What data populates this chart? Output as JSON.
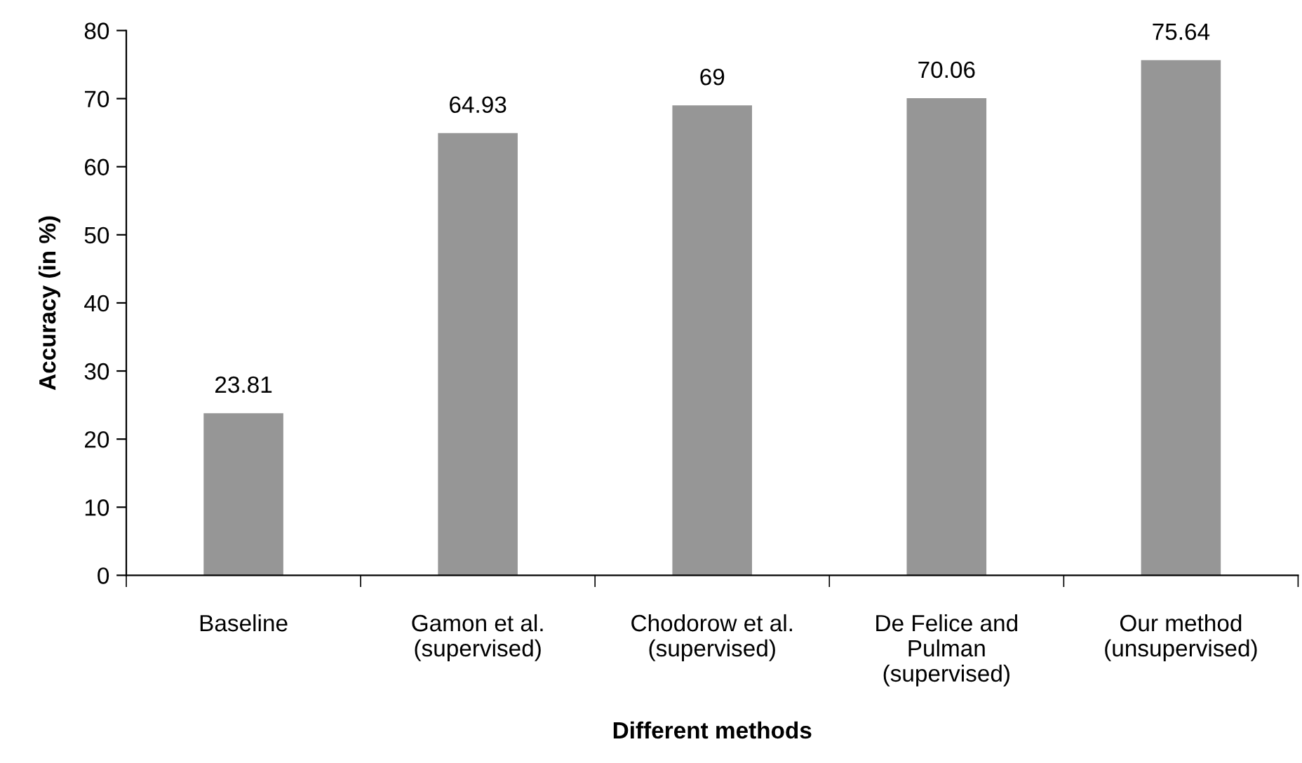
{
  "chart_data": {
    "type": "bar",
    "categories": [
      "Baseline",
      "Gamon et al.\n(supervised)",
      "Chodorow et al.\n(supervised)",
      "De Felice and\nPulman\n(supervised)",
      "Our method\n(unsupervised)"
    ],
    "values": [
      23.81,
      64.93,
      69,
      70.06,
      75.64
    ],
    "color": "#969696",
    "xlabel": "Different methods",
    "ylabel": "Accuracy (in %)",
    "ylim": [
      0,
      80
    ],
    "yticks": [
      0,
      10,
      20,
      30,
      40,
      50,
      60,
      70,
      80
    ],
    "data_labels": true,
    "grid": false,
    "legend": false
  }
}
